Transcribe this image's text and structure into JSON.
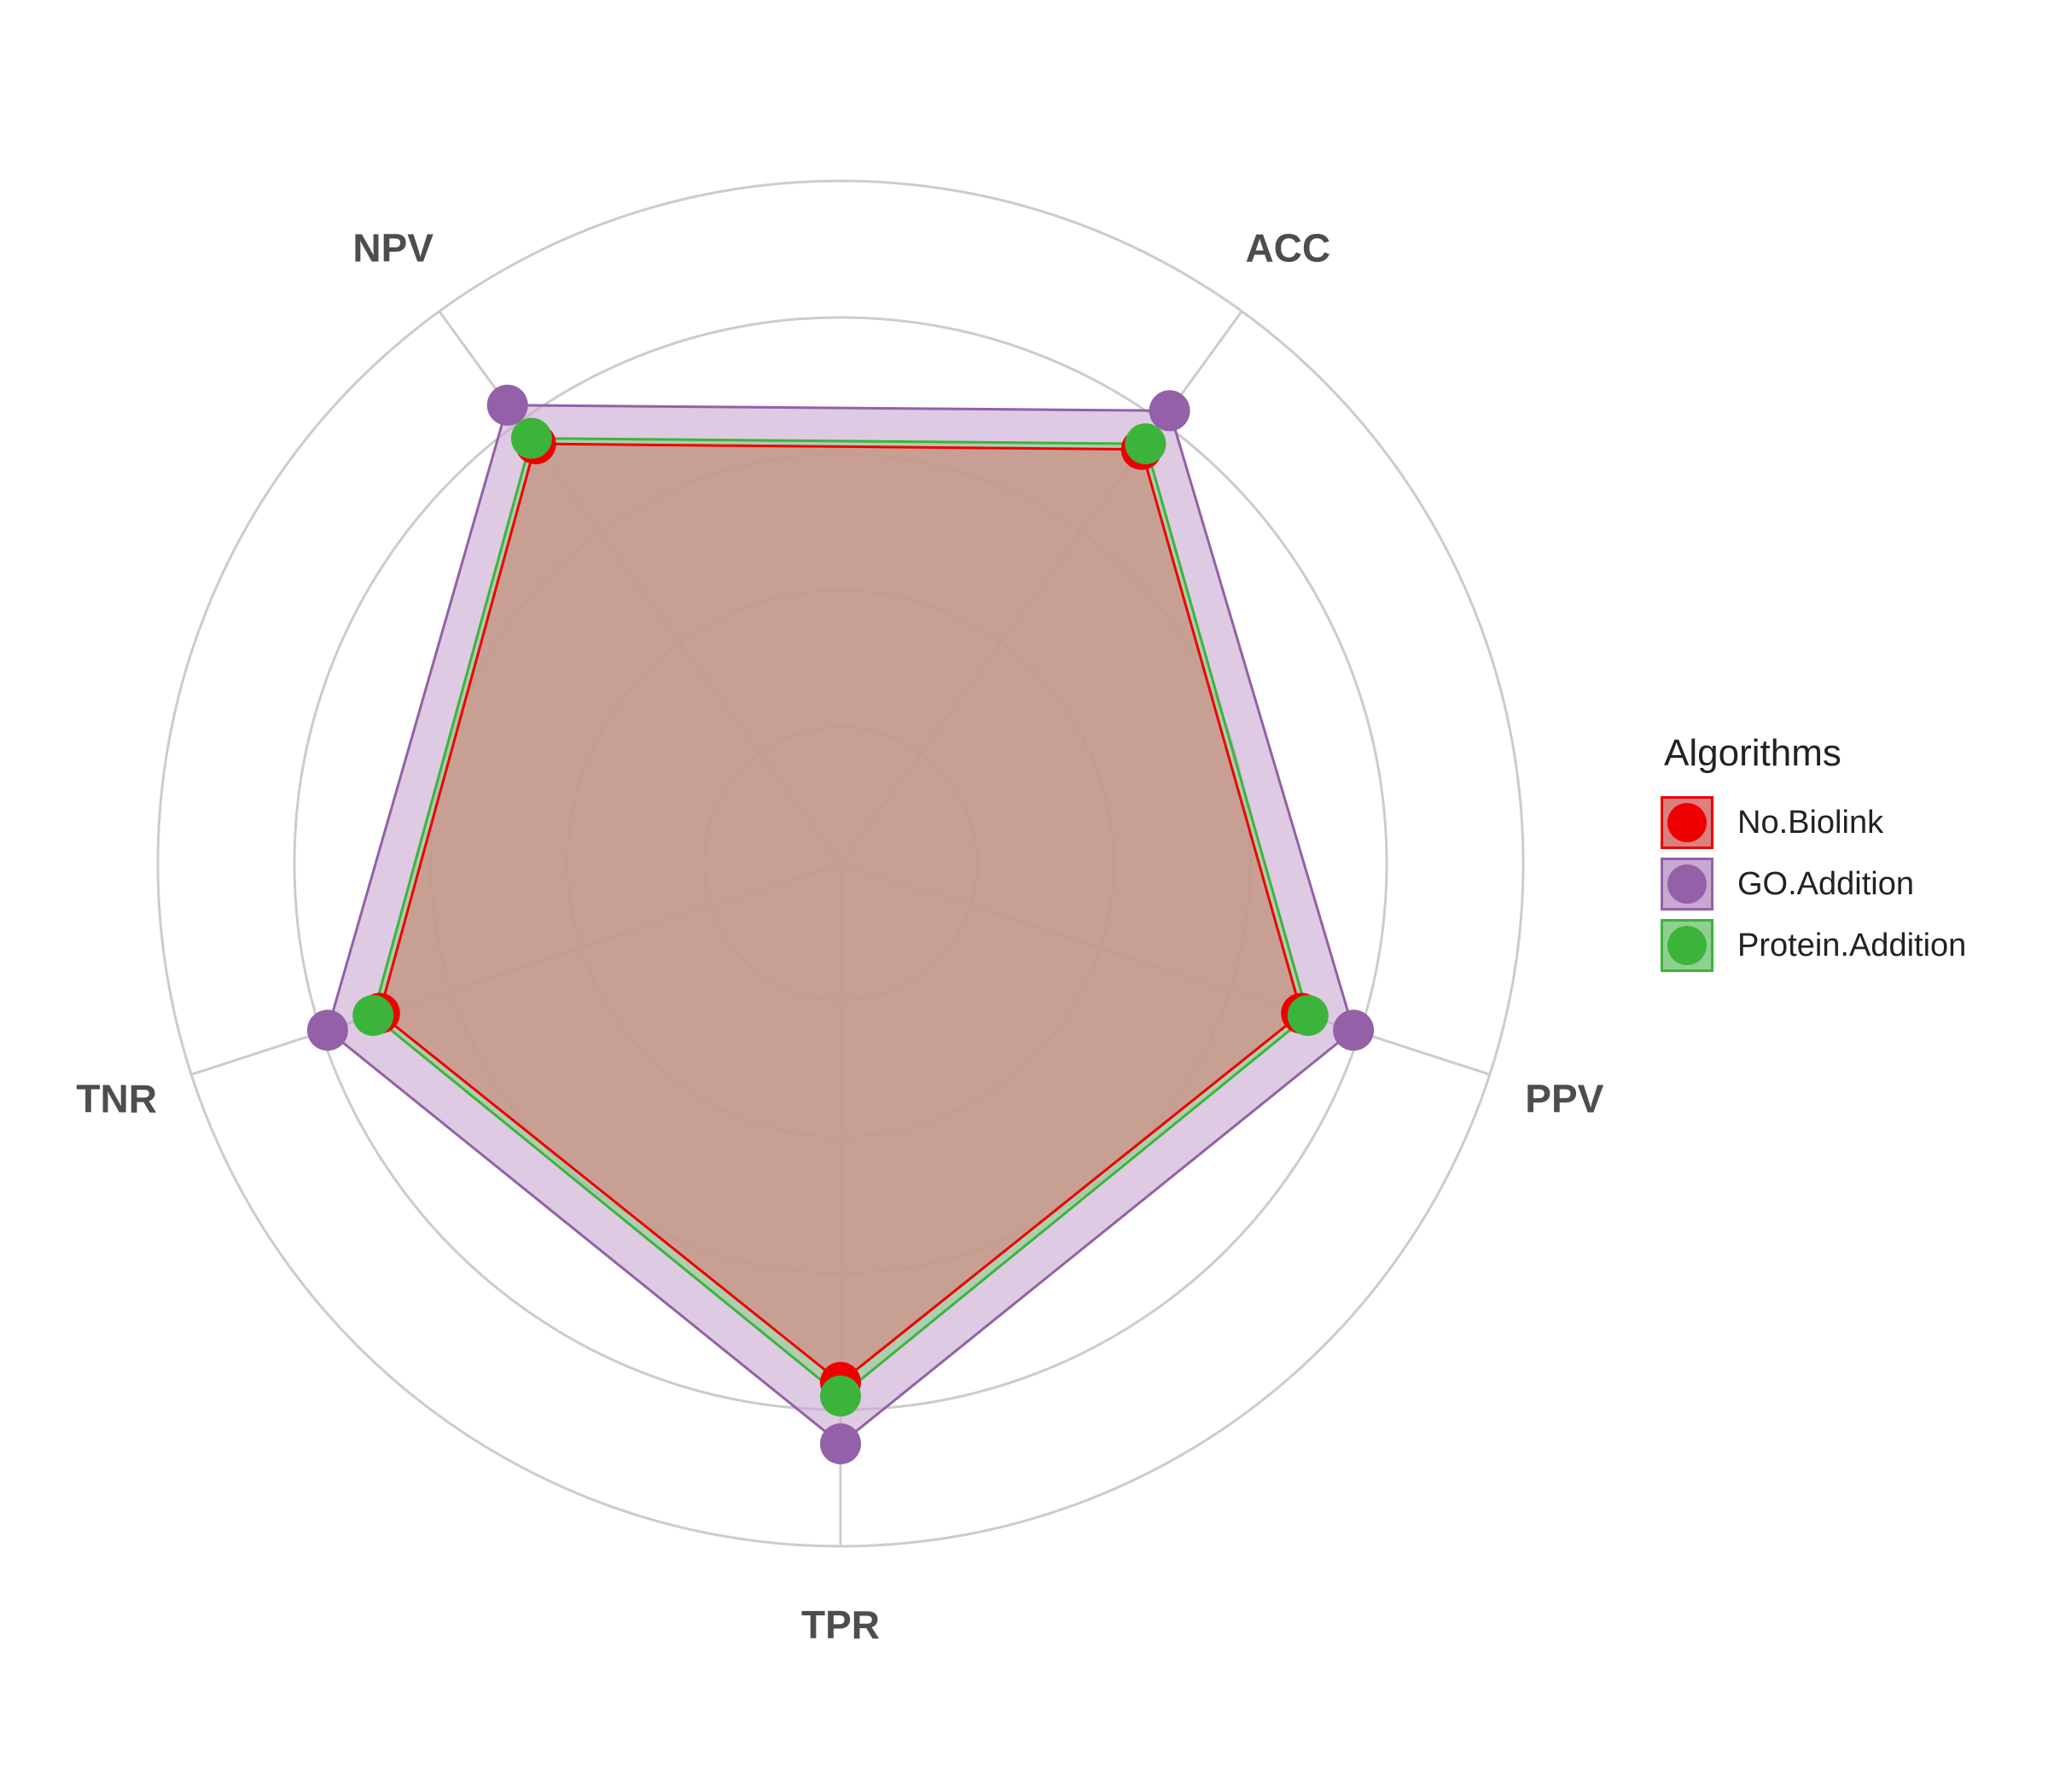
{
  "chart_data": {
    "type": "radar",
    "axes": [
      "ACC",
      "PPV",
      "TPR",
      "TNR",
      "NPV"
    ],
    "rlim": [
      0,
      1
    ],
    "grid_levels": [
      0.2,
      0.4,
      0.6,
      0.8,
      1.0
    ],
    "grid": true,
    "legend_position": "right",
    "legend_title": "Algorithms",
    "series": [
      {
        "name": "No.Biolink",
        "color": "#ee0000",
        "fill_color": "#d98080",
        "values": [
          0.75,
          0.71,
          0.76,
          0.71,
          0.76
        ]
      },
      {
        "name": "GO.Addition",
        "color": "#9460a8",
        "fill_color": "#c8a8d0",
        "values": [
          0.82,
          0.79,
          0.85,
          0.79,
          0.83
        ]
      },
      {
        "name": "Protein.Addition",
        "color": "#3cb43c",
        "fill_color": "#8ed08e",
        "values": [
          0.76,
          0.72,
          0.78,
          0.72,
          0.77
        ]
      }
    ]
  }
}
